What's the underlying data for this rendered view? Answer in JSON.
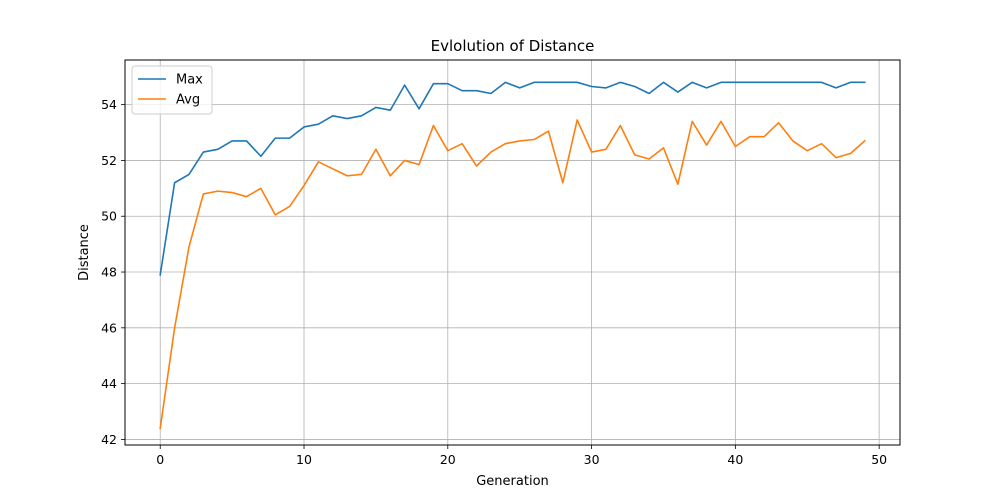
{
  "chart_data": {
    "type": "line",
    "title": "Evlolution of Distance",
    "xlabel": "Generation",
    "ylabel": "Distance",
    "xlim": [
      -2.45,
      51.45
    ],
    "ylim": [
      41.8,
      55.6
    ],
    "xticks": [
      0,
      10,
      20,
      30,
      40,
      50
    ],
    "yticks": [
      42,
      44,
      46,
      48,
      50,
      52,
      54
    ],
    "grid": true,
    "legend_position": "top-left",
    "x": [
      0,
      1,
      2,
      3,
      4,
      5,
      6,
      7,
      8,
      9,
      10,
      11,
      12,
      13,
      14,
      15,
      16,
      17,
      18,
      19,
      20,
      21,
      22,
      23,
      24,
      25,
      26,
      27,
      28,
      29,
      30,
      31,
      32,
      33,
      34,
      35,
      36,
      37,
      38,
      39,
      40,
      41,
      42,
      43,
      44,
      45,
      46,
      47,
      48,
      49
    ],
    "series": [
      {
        "name": "Max",
        "color": "#1f77b4",
        "values": [
          47.9,
          51.2,
          51.5,
          52.3,
          52.4,
          52.7,
          52.7,
          52.15,
          52.8,
          52.8,
          53.2,
          53.3,
          53.6,
          53.5,
          53.6,
          53.9,
          53.8,
          54.7,
          53.85,
          54.75,
          54.75,
          54.5,
          54.5,
          54.4,
          54.8,
          54.6,
          54.8,
          54.8,
          54.8,
          54.8,
          54.65,
          54.6,
          54.8,
          54.65,
          54.4,
          54.8,
          54.45,
          54.8,
          54.6,
          54.8,
          54.8,
          54.8,
          54.8,
          54.8,
          54.8,
          54.8,
          54.8,
          54.6,
          54.8,
          54.8
        ]
      },
      {
        "name": "Avg",
        "color": "#ff7f0e",
        "values": [
          42.4,
          46.0,
          48.9,
          50.8,
          50.9,
          50.85,
          50.7,
          51.0,
          50.05,
          50.35,
          51.1,
          51.95,
          51.7,
          51.45,
          51.5,
          52.4,
          51.45,
          52.0,
          51.85,
          53.25,
          52.35,
          52.6,
          51.8,
          52.3,
          52.6,
          52.7,
          52.75,
          53.05,
          51.2,
          53.45,
          52.3,
          52.4,
          53.25,
          52.2,
          52.05,
          52.45,
          51.15,
          53.4,
          52.55,
          53.4,
          52.5,
          52.85,
          52.85,
          53.35,
          52.7,
          52.35,
          52.6,
          52.1,
          52.25,
          52.7
        ]
      }
    ]
  }
}
